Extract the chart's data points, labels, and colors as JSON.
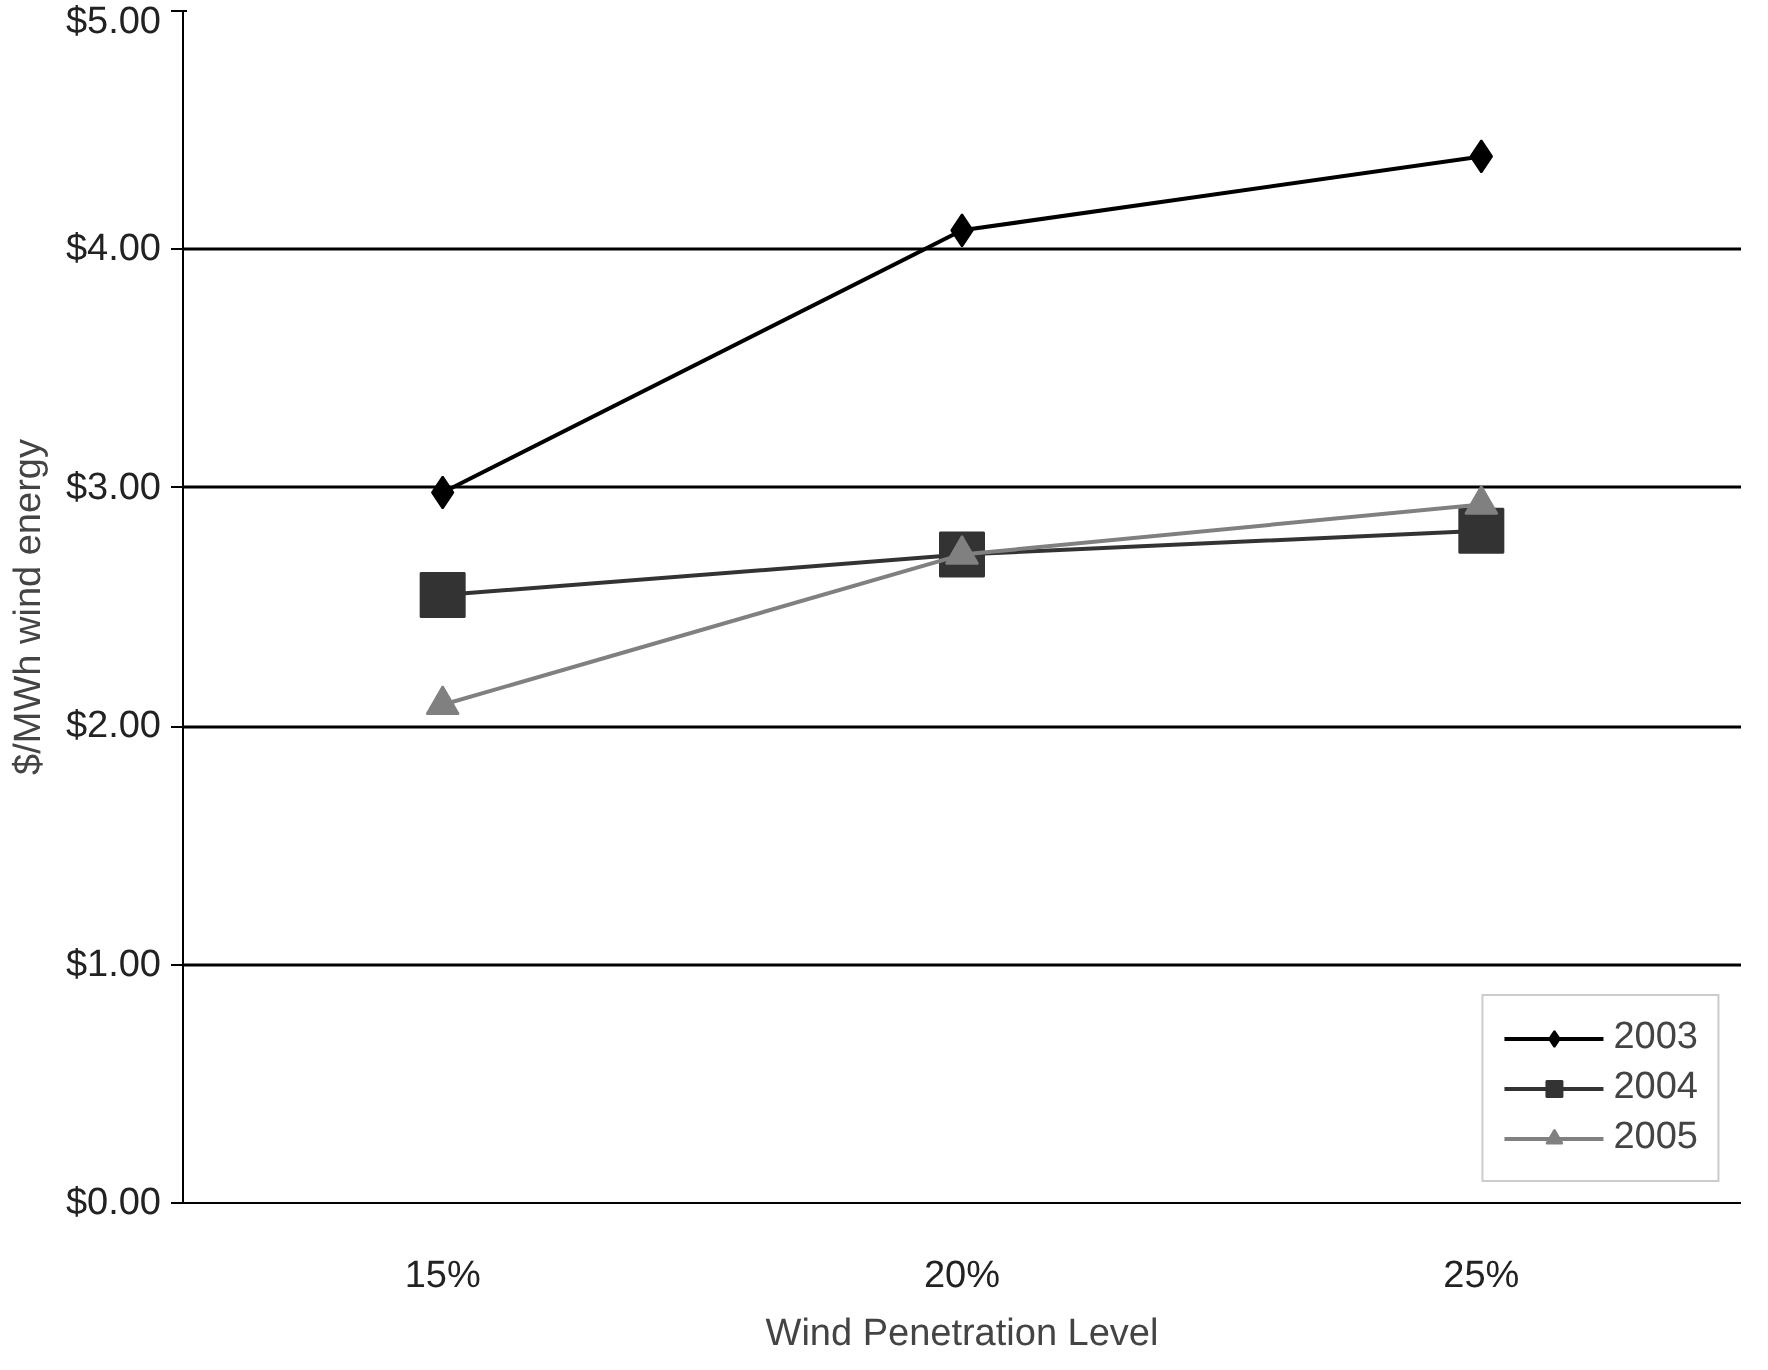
{
  "chart_data": {
    "type": "line",
    "xlabel": "Wind Penetration Level",
    "ylabel": "$/MWh wind energy",
    "categories": [
      "15%",
      "20%",
      "25%"
    ],
    "series": [
      {
        "name": "2003",
        "color": "#000000",
        "marker": "diamond",
        "values": [
          2.98,
          4.08,
          4.39
        ]
      },
      {
        "name": "2004",
        "color": "#333333",
        "marker": "square",
        "values": [
          2.55,
          2.72,
          2.82
        ]
      },
      {
        "name": "2005",
        "color": "#808080",
        "marker": "triangle",
        "values": [
          2.09,
          2.72,
          2.93
        ]
      }
    ],
    "ylim": [
      0,
      5
    ],
    "yticks": [
      {
        "value": 0,
        "label": "$0.00"
      },
      {
        "value": 1,
        "label": "$1.00"
      },
      {
        "value": 2,
        "label": "$2.00"
      },
      {
        "value": 3,
        "label": "$3.00"
      },
      {
        "value": 4,
        "label": "$4.00"
      },
      {
        "value": 5,
        "label": "$5.00"
      }
    ],
    "grid": "y",
    "legend": "bottom right",
    "line_style": "solid"
  }
}
